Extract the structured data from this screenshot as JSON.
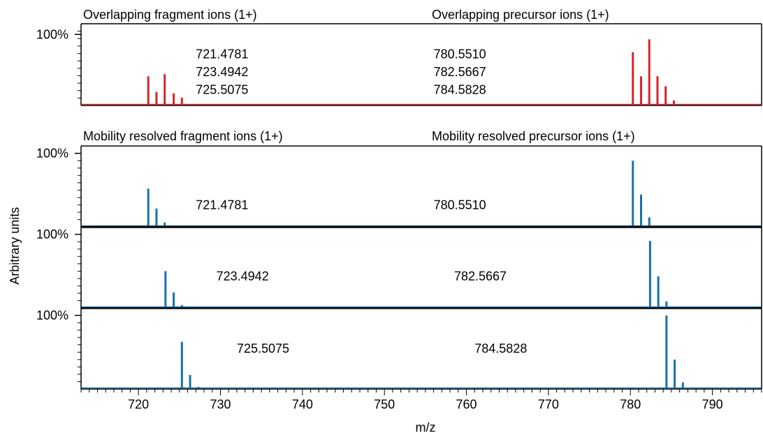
{
  "chart_data": {
    "type": "bar",
    "xlabel": "m/z",
    "ylabel": "Arbitrary units",
    "xlim": [
      713,
      796
    ],
    "xticks": [
      720,
      730,
      740,
      750,
      760,
      770,
      780,
      790
    ],
    "colors": {
      "overlap": "#d7232b",
      "resolved": "#1770ad",
      "axis": "#000000"
    },
    "panels": [
      {
        "id": "overlap",
        "color": "overlap",
        "y_label": "100%",
        "ylim": [
          0,
          1.15
        ],
        "titles": [
          "Overlapping fragment ions (1+)",
          "Overlapping precursor ions (1+)"
        ],
        "annotations": [
          {
            "text": "721.4781",
            "x": 727,
            "y": 0.72
          },
          {
            "text": "723.4942",
            "x": 727,
            "y": 0.47
          },
          {
            "text": "725.5075",
            "x": 727,
            "y": 0.22
          },
          {
            "text": "780.5510",
            "x": 756,
            "y": 0.72
          },
          {
            "text": "782.5667",
            "x": 756,
            "y": 0.47
          },
          {
            "text": "784.5828",
            "x": 756,
            "y": 0.22
          }
        ],
        "peaks": [
          {
            "x": 721.2,
            "y": 0.41
          },
          {
            "x": 722.2,
            "y": 0.19
          },
          {
            "x": 723.2,
            "y": 0.44
          },
          {
            "x": 724.3,
            "y": 0.17
          },
          {
            "x": 725.3,
            "y": 0.11
          },
          {
            "x": 726.3,
            "y": 0.02
          },
          {
            "x": 780.3,
            "y": 0.75
          },
          {
            "x": 781.3,
            "y": 0.41
          },
          {
            "x": 782.3,
            "y": 0.93
          },
          {
            "x": 783.3,
            "y": 0.41
          },
          {
            "x": 784.3,
            "y": 0.27
          },
          {
            "x": 785.3,
            "y": 0.07
          },
          {
            "x": 786.3,
            "y": 0.01
          }
        ]
      },
      {
        "id": "resolved-721",
        "color": "resolved",
        "y_label": "100%",
        "ylim": [
          0,
          1.1
        ],
        "titles": [
          "Mobility resolved fragment ions (1+)",
          "Mobility resolved precursor ions (1+)"
        ],
        "annotations": [
          {
            "text": "721.4781",
            "x": 727,
            "y": 0.3
          },
          {
            "text": "780.5510",
            "x": 756,
            "y": 0.3
          }
        ],
        "peaks": [
          {
            "x": 721.2,
            "y": 0.52
          },
          {
            "x": 722.2,
            "y": 0.25
          },
          {
            "x": 723.2,
            "y": 0.06
          },
          {
            "x": 780.3,
            "y": 0.9
          },
          {
            "x": 781.3,
            "y": 0.44
          },
          {
            "x": 782.3,
            "y": 0.13
          }
        ]
      },
      {
        "id": "resolved-723",
        "color": "resolved",
        "y_label": "100%",
        "ylim": [
          0,
          1.1
        ],
        "titles": [],
        "annotations": [
          {
            "text": "723.4942",
            "x": 729.5,
            "y": 0.43
          },
          {
            "text": "782.5667",
            "x": 758.5,
            "y": 0.43
          }
        ],
        "peaks": [
          {
            "x": 723.3,
            "y": 0.5
          },
          {
            "x": 724.3,
            "y": 0.21
          },
          {
            "x": 725.3,
            "y": 0.04
          },
          {
            "x": 782.4,
            "y": 0.91
          },
          {
            "x": 783.4,
            "y": 0.43
          },
          {
            "x": 784.4,
            "y": 0.09
          }
        ]
      },
      {
        "id": "resolved-725",
        "color": "resolved",
        "y_label": "100%",
        "ylim": [
          0,
          1.1
        ],
        "titles": [],
        "annotations": [
          {
            "text": "725.5075",
            "x": 732,
            "y": 0.55
          },
          {
            "text": "784.5828",
            "x": 761,
            "y": 0.55
          }
        ],
        "peaks": [
          {
            "x": 725.3,
            "y": 0.64
          },
          {
            "x": 726.3,
            "y": 0.19
          },
          {
            "x": 727.3,
            "y": 0.03
          },
          {
            "x": 784.4,
            "y": 1.0
          },
          {
            "x": 785.4,
            "y": 0.4
          },
          {
            "x": 786.4,
            "y": 0.09
          }
        ]
      }
    ]
  }
}
